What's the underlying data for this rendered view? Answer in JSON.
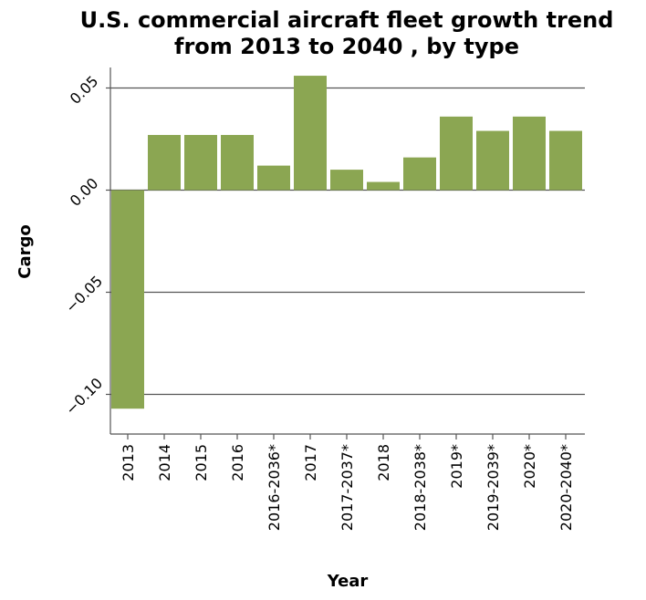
{
  "chart_data": {
    "type": "bar",
    "title_lines": [
      "U.S. commercial aircraft fleet growth trend",
      "from 2013 to 2040 , by type"
    ],
    "xlabel": "Year",
    "ylabel": "Cargo",
    "categories": [
      "2013",
      "2014",
      "2015",
      "2016",
      "2016-2036*",
      "2017",
      "2017-2037*",
      "2018",
      "2018-2038*",
      "2019*",
      "2019-2039*",
      "2020*",
      "2020-2040*"
    ],
    "values": [
      -0.107,
      0.027,
      0.027,
      0.027,
      0.012,
      0.056,
      0.01,
      0.004,
      0.016,
      0.036,
      0.029,
      0.036,
      0.029
    ],
    "ylim": [
      -0.12,
      0.06
    ],
    "yticks": [
      0.05,
      0.0,
      -0.05,
      -0.1
    ],
    "ytick_labels": [
      "0.05",
      "0.00",
      "−0.05",
      "−0.10"
    ],
    "grid": true,
    "bar_color": "#8ba652"
  }
}
